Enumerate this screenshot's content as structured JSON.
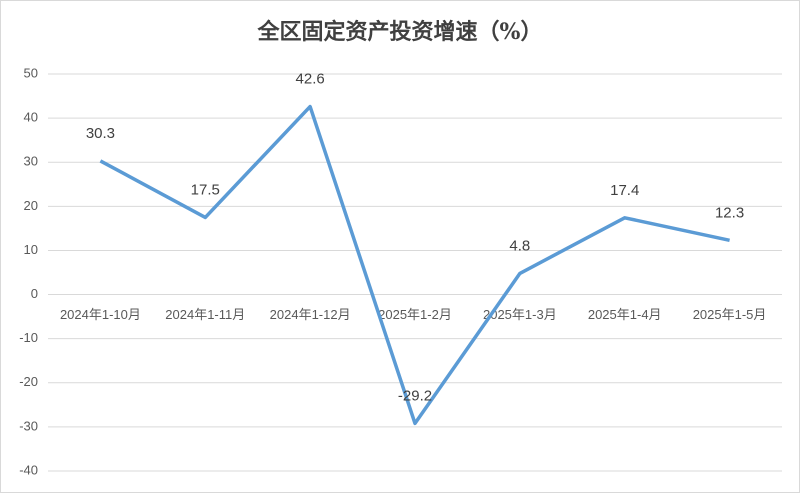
{
  "chart_data": {
    "type": "line",
    "title": "全区固定资产投资增速（%）",
    "categories": [
      "2024年1-10月",
      "2024年1-11月",
      "2024年1-12月",
      "2025年1-2月",
      "2025年1-3月",
      "2025年1-4月",
      "2025年1-5月"
    ],
    "values": [
      30.3,
      17.5,
      42.6,
      -29.2,
      4.8,
      17.4,
      12.3
    ],
    "color": "#5b9bd5",
    "ylim": [
      -40,
      50
    ],
    "yticks": [
      -40,
      -30,
      -20,
      -10,
      0,
      10,
      20,
      30,
      40,
      50
    ],
    "grid": true
  }
}
